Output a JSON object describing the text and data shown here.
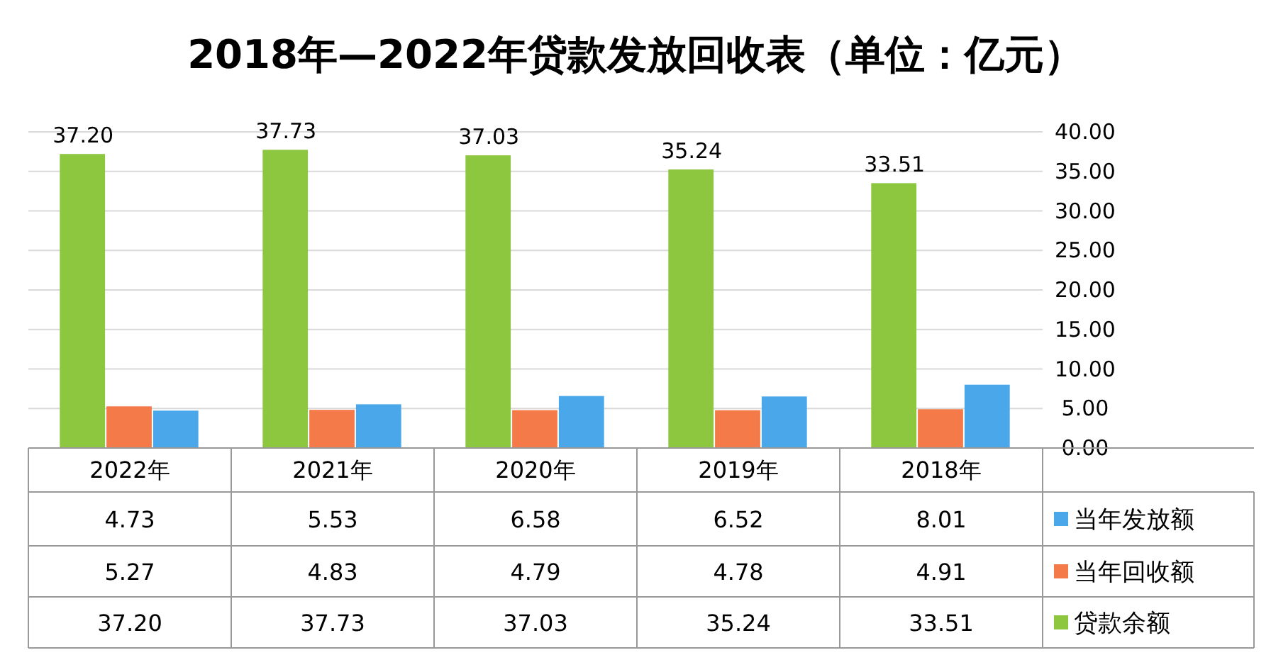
{
  "chart_data": {
    "type": "bar",
    "title": "2018年—2022年贷款发放回收表（单位：亿元）",
    "categories": [
      "2022年",
      "2021年",
      "2020年",
      "2019年",
      "2018年"
    ],
    "series": [
      {
        "name": "当年发放额",
        "color": "#4aa8ea",
        "values": [
          4.73,
          5.53,
          6.58,
          6.52,
          8.01
        ],
        "value_labels": [
          "4.73",
          "5.53",
          "6.58",
          "6.52",
          "8.01"
        ]
      },
      {
        "name": "当年回收额",
        "color": "#f47a4a",
        "values": [
          5.27,
          4.83,
          4.79,
          4.78,
          4.91
        ],
        "value_labels": [
          "5.27",
          "4.83",
          "4.79",
          "4.78",
          "4.91"
        ]
      },
      {
        "name": "贷款余额",
        "color": "#8dc63f",
        "values": [
          37.2,
          37.73,
          37.03,
          35.24,
          33.51
        ],
        "value_labels": [
          "37.20",
          "37.73",
          "37.03",
          "35.24",
          "33.51"
        ]
      }
    ],
    "ylim": [
      0,
      40
    ],
    "yticks": [
      {
        "value": 0,
        "label": "0.00"
      },
      {
        "value": 5,
        "label": "5.00"
      },
      {
        "value": 10,
        "label": "10.00"
      },
      {
        "value": 15,
        "label": "15.00"
      },
      {
        "value": 20,
        "label": "20.00"
      },
      {
        "value": 25,
        "label": "25.00"
      },
      {
        "value": 30,
        "label": "30.00"
      },
      {
        "value": 35,
        "label": "35.00"
      },
      {
        "value": 40,
        "label": "40.00"
      }
    ],
    "grid": "y",
    "legend": "bottom"
  }
}
